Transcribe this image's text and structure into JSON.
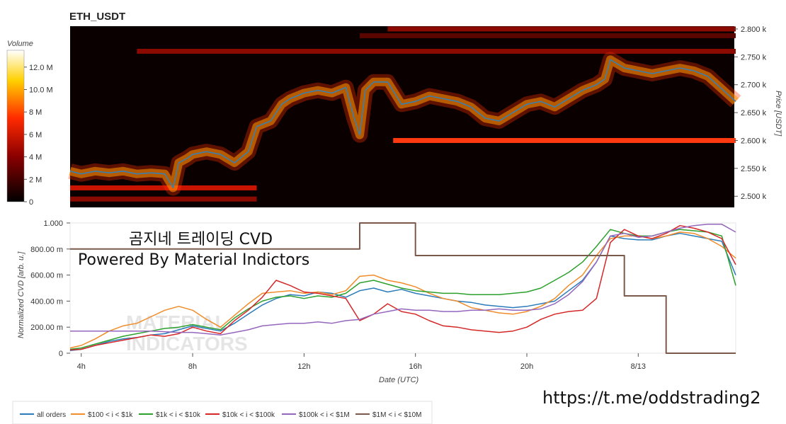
{
  "chart_data": [
    {
      "type": "heatmap",
      "title": "ETH_USDT",
      "ylabel": "Price [USDT]",
      "ylim": [
        2480,
        2805
      ],
      "y_ticks": [
        "2.500 k",
        "2.550 k",
        "2.600 k",
        "2.650 k",
        "2.700 k",
        "2.750 k",
        "2.800 k"
      ],
      "y_tick_values": [
        2500,
        2550,
        2600,
        2650,
        2700,
        2750,
        2800
      ],
      "colorbar": {
        "label": "Volume",
        "range": [
          0,
          13.5
        ],
        "ticks": [
          "0",
          "2 M",
          "4 M",
          "6 M",
          "8 M",
          "10.0 M",
          "12.0 M"
        ],
        "tick_values": [
          0,
          2,
          4,
          6,
          8,
          10,
          12
        ]
      },
      "price_line": {
        "color": "#3b7fb0",
        "x_hours": [
          3.6,
          4,
          4.5,
          5,
          5.5,
          6,
          6.5,
          7,
          7.3,
          7.5,
          7.8,
          8,
          8.5,
          9,
          9.5,
          10,
          10.3,
          10.8,
          11.2,
          11.5,
          12,
          12.5,
          13,
          13.5,
          13.8,
          14,
          14.2,
          14.5,
          15,
          15.5,
          16,
          16.5,
          17,
          17.5,
          18,
          18.5,
          19,
          19.5,
          20,
          20.5,
          21,
          21.5,
          22,
          22.5,
          22.8,
          23,
          23.5,
          24,
          24.5,
          25,
          25.5,
          26,
          26.5,
          27.5
        ],
        "prices": [
          2545,
          2540,
          2545,
          2542,
          2545,
          2540,
          2542,
          2540,
          2515,
          2560,
          2568,
          2575,
          2580,
          2575,
          2560,
          2580,
          2625,
          2635,
          2665,
          2675,
          2685,
          2690,
          2685,
          2695,
          2640,
          2610,
          2690,
          2705,
          2705,
          2665,
          2670,
          2680,
          2675,
          2670,
          2660,
          2640,
          2635,
          2650,
          2665,
          2670,
          2660,
          2675,
          2690,
          2700,
          2710,
          2745,
          2730,
          2725,
          2720,
          2725,
          2730,
          2725,
          2715,
          2670
        ]
      },
      "volume_bands": [
        {
          "price": 2800,
          "x_start": 15,
          "x_end": 27.5,
          "level": 0.45
        },
        {
          "price": 2788,
          "x_start": 14,
          "x_end": 27.5,
          "level": 0.3
        },
        {
          "price": 2760,
          "x_start": 6,
          "x_end": 27.5,
          "level": 0.35
        },
        {
          "price": 2600,
          "x_start": 15.2,
          "x_end": 27.5,
          "level": 0.7
        },
        {
          "price": 2515,
          "x_start": 3.6,
          "x_end": 10.3,
          "level": 0.5
        },
        {
          "price": 2495,
          "x_start": 3.6,
          "x_end": 10.3,
          "level": 0.35
        }
      ]
    },
    {
      "type": "line",
      "xlabel": "Date (UTC)",
      "ylabel": "Normalized CVD [arb. u.]",
      "xlim": [
        3.6,
        27.5
      ],
      "ylim": [
        0,
        1000
      ],
      "x_ticks": [
        "4h",
        "8h",
        "12h",
        "16h",
        "20h",
        "8/13"
      ],
      "x_tick_values": [
        4,
        8,
        12,
        16,
        20,
        24
      ],
      "y_ticks": [
        "0",
        "200.00 m",
        "400.00 m",
        "600.00 m",
        "800.00 m",
        "1.000"
      ],
      "y_tick_values": [
        0,
        200,
        400,
        600,
        800,
        1000
      ],
      "annotations": [
        "곰지네 트레이딩 CVD",
        "Powered By Material Indictors"
      ],
      "watermark": [
        "MATERIAL",
        "INDICATORS"
      ],
      "legend_position": "bottom-left",
      "x": [
        3.6,
        4,
        4.5,
        5,
        5.5,
        6,
        6.5,
        7,
        7.5,
        8,
        8.5,
        9,
        9.5,
        10,
        10.5,
        11,
        11.5,
        12,
        12.5,
        13,
        13.5,
        14,
        14.5,
        15,
        15.5,
        16,
        16.5,
        17,
        17.5,
        18,
        18.5,
        19,
        19.5,
        20,
        20.5,
        21,
        21.5,
        22,
        22.5,
        23,
        23.5,
        24,
        24.5,
        25,
        25.5,
        26,
        26.5,
        27,
        27.5
      ],
      "series": [
        {
          "name": "all orders",
          "color": "#2b7bba",
          "values": [
            20,
            30,
            60,
            90,
            110,
            120,
            140,
            150,
            180,
            210,
            190,
            170,
            230,
            300,
            370,
            420,
            450,
            440,
            470,
            460,
            430,
            480,
            500,
            470,
            490,
            460,
            440,
            420,
            400,
            390,
            370,
            360,
            350,
            360,
            380,
            400,
            480,
            560,
            700,
            900,
            880,
            870,
            870,
            900,
            920,
            900,
            880,
            860,
            600
          ]
        },
        {
          "name": "$100 < i < $1k",
          "color": "#f08c2a",
          "values": [
            40,
            60,
            110,
            170,
            210,
            230,
            280,
            330,
            360,
            330,
            260,
            200,
            290,
            380,
            460,
            470,
            480,
            460,
            470,
            450,
            480,
            590,
            600,
            560,
            540,
            510,
            460,
            420,
            400,
            350,
            330,
            310,
            300,
            320,
            360,
            420,
            520,
            600,
            750,
            880,
            900,
            900,
            880,
            900,
            930,
            920,
            880,
            820,
            730
          ]
        },
        {
          "name": "$1k < i < $10k",
          "color": "#2ca02c",
          "values": [
            30,
            40,
            70,
            100,
            130,
            150,
            170,
            190,
            200,
            220,
            200,
            180,
            270,
            340,
            400,
            430,
            440,
            420,
            440,
            430,
            460,
            540,
            560,
            530,
            500,
            480,
            470,
            460,
            460,
            450,
            450,
            450,
            460,
            470,
            500,
            560,
            620,
            700,
            820,
            950,
            920,
            900,
            900,
            930,
            950,
            940,
            930,
            900,
            520
          ]
        },
        {
          "name": "$10k < i < $100k",
          "color": "#d62728",
          "values": [
            25,
            30,
            60,
            80,
            100,
            120,
            140,
            130,
            150,
            200,
            170,
            150,
            250,
            330,
            430,
            560,
            520,
            470,
            460,
            440,
            420,
            250,
            300,
            380,
            320,
            300,
            250,
            210,
            200,
            180,
            170,
            160,
            170,
            200,
            260,
            300,
            320,
            330,
            420,
            850,
            950,
            900,
            880,
            920,
            980,
            960,
            930,
            880,
            680
          ]
        },
        {
          "name": "$100k < i < $1M",
          "color": "#9467bd",
          "values": [
            170,
            170,
            170,
            170,
            170,
            170,
            170,
            165,
            160,
            160,
            150,
            140,
            160,
            180,
            210,
            220,
            230,
            230,
            240,
            230,
            250,
            260,
            300,
            320,
            340,
            330,
            330,
            320,
            320,
            330,
            330,
            340,
            330,
            330,
            340,
            380,
            450,
            550,
            700,
            900,
            920,
            890,
            900,
            930,
            960,
            980,
            990,
            990,
            930
          ]
        },
        {
          "name": "$1M < i < $10M",
          "color": "#7b5a4b",
          "values": [
            800,
            800,
            800,
            800,
            800,
            800,
            800,
            800,
            800,
            800,
            800,
            800,
            800,
            800,
            800,
            800,
            800,
            800,
            800,
            800,
            800,
            1000,
            1000,
            1000,
            1000,
            750,
            750,
            750,
            750,
            750,
            750,
            750,
            750,
            750,
            750,
            750,
            750,
            750,
            750,
            750,
            440,
            440,
            440,
            0,
            0,
            0,
            0,
            0,
            0
          ]
        }
      ]
    }
  ],
  "footer": {
    "url": "https://t.me/oddstrading2"
  }
}
